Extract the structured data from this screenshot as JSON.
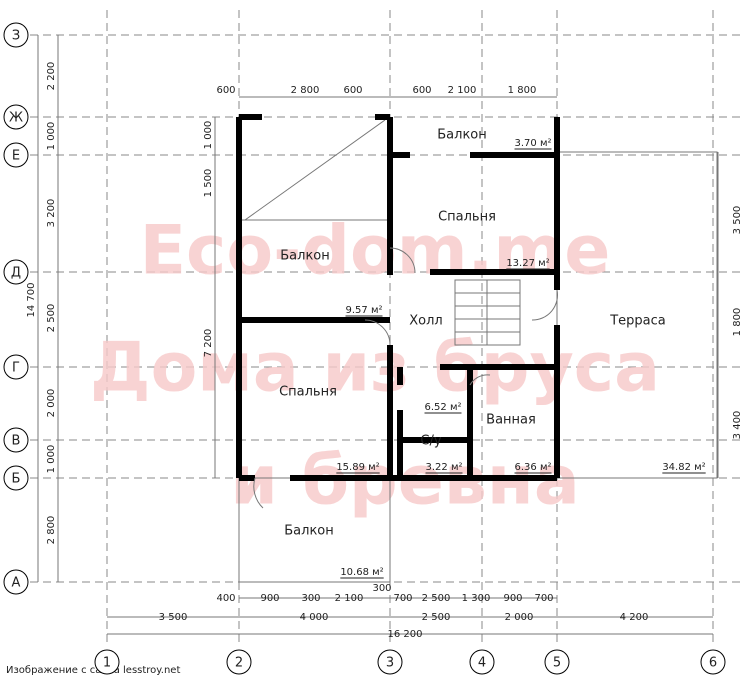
{
  "grid": {
    "columns": [
      "1",
      "2",
      "3",
      "4",
      "5",
      "6"
    ],
    "rows": [
      "З",
      "Ж",
      "Е",
      "Д",
      "Г",
      "В",
      "Б",
      "А"
    ]
  },
  "dimensions": {
    "top": [
      "600",
      "2 800",
      "600",
      "600",
      "2 100",
      "1 800"
    ],
    "left": [
      "2 200",
      "1 000",
      "3 200",
      "2 500",
      "2 000",
      "1 000",
      "2 800"
    ],
    "total_height": "14 700",
    "inner_left": [
      "1 000",
      "1 500",
      "7 200"
    ],
    "right": [
      "3 500",
      "1 800",
      "3 400"
    ],
    "bottom_1": [
      "400",
      "900",
      "300",
      "2 100",
      "300",
      "700",
      "2 500",
      "1 300",
      "900",
      "700"
    ],
    "bottom_2": [
      "3 500",
      "4 000",
      "2 500",
      "2 000",
      "4 200"
    ],
    "total_width": "16 200"
  },
  "rooms": [
    "Балкон",
    "Спальня",
    "Балкон",
    "Холл",
    "Терраса",
    "Спальня",
    "Ванная",
    "С/у",
    "Балкон"
  ],
  "areas": [
    "3.70 м²",
    "13.27 м²",
    "9.57 м²",
    "6.52 м²",
    "15.89 м²",
    "3.22 м²",
    "6.36 м²",
    "34.82 м²",
    "10.68 м²"
  ],
  "watermark": [
    "Eco-dom.me",
    "Дома из бруса",
    "и бревна"
  ],
  "source": "Изображение с сайта lesstroy.net"
}
